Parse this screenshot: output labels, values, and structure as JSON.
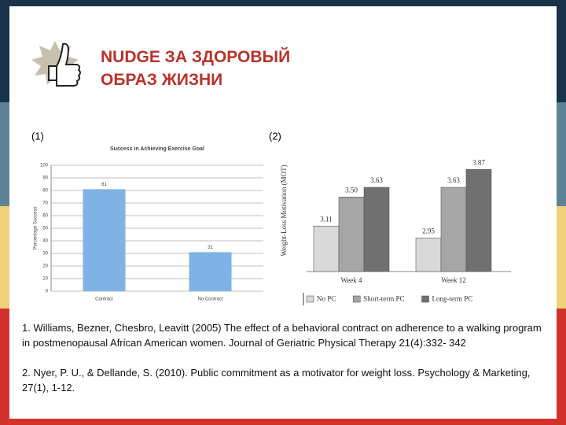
{
  "title_lines": [
    "NUDGE ЗА ЗДОРОВЫЙ",
    "ОБРАЗ ЖИЗНИ"
  ],
  "chart_labels": [
    "(1)",
    "(2)"
  ],
  "chart_data": [
    {
      "type": "bar",
      "title": "Success in Achieving Exercise Goal",
      "y_label": "Percentage Success",
      "categories": [
        "Contract",
        "No Contract"
      ],
      "values": [
        81,
        31
      ],
      "color": "#7fb2e5",
      "ylim": [
        0,
        100
      ],
      "yticks": [
        0,
        10,
        20,
        30,
        40,
        50,
        60,
        70,
        80,
        90,
        100
      ],
      "grid": true
    },
    {
      "type": "grouped-bar",
      "y_label": "Weight-Loss Motivation (MOT)",
      "categories": [
        "Week 4",
        "Week 12"
      ],
      "series": [
        {
          "name": "No PC",
          "color": "#d9d9d9",
          "values": [
            3.11,
            2.95
          ]
        },
        {
          "name": "Short-term PC",
          "color": "#a6a6a6",
          "values": [
            3.5,
            3.63
          ],
          "value_labels": [
            "3.50",
            "3.63"
          ]
        },
        {
          "name": "Long-term PC",
          "color": "#707070",
          "values": [
            3.63,
            3.87
          ]
        }
      ],
      "ylim": [
        2.5,
        4.0
      ],
      "legend": "bottom"
    }
  ],
  "references": [
    "1. Williams, Bezner, Chesbro, Leavitt (2005) The effect of a behavioral contract on adherence to a walking program in postmenopausal African American women. Journal of Geriatric Physical Therapy 21(4):332- 342",
    "2. Nyer, P. U., & Dellande, S. (2010). Public commitment as a motivator for weight loss. Psychology & Marketing, 27(1), 1-12."
  ]
}
